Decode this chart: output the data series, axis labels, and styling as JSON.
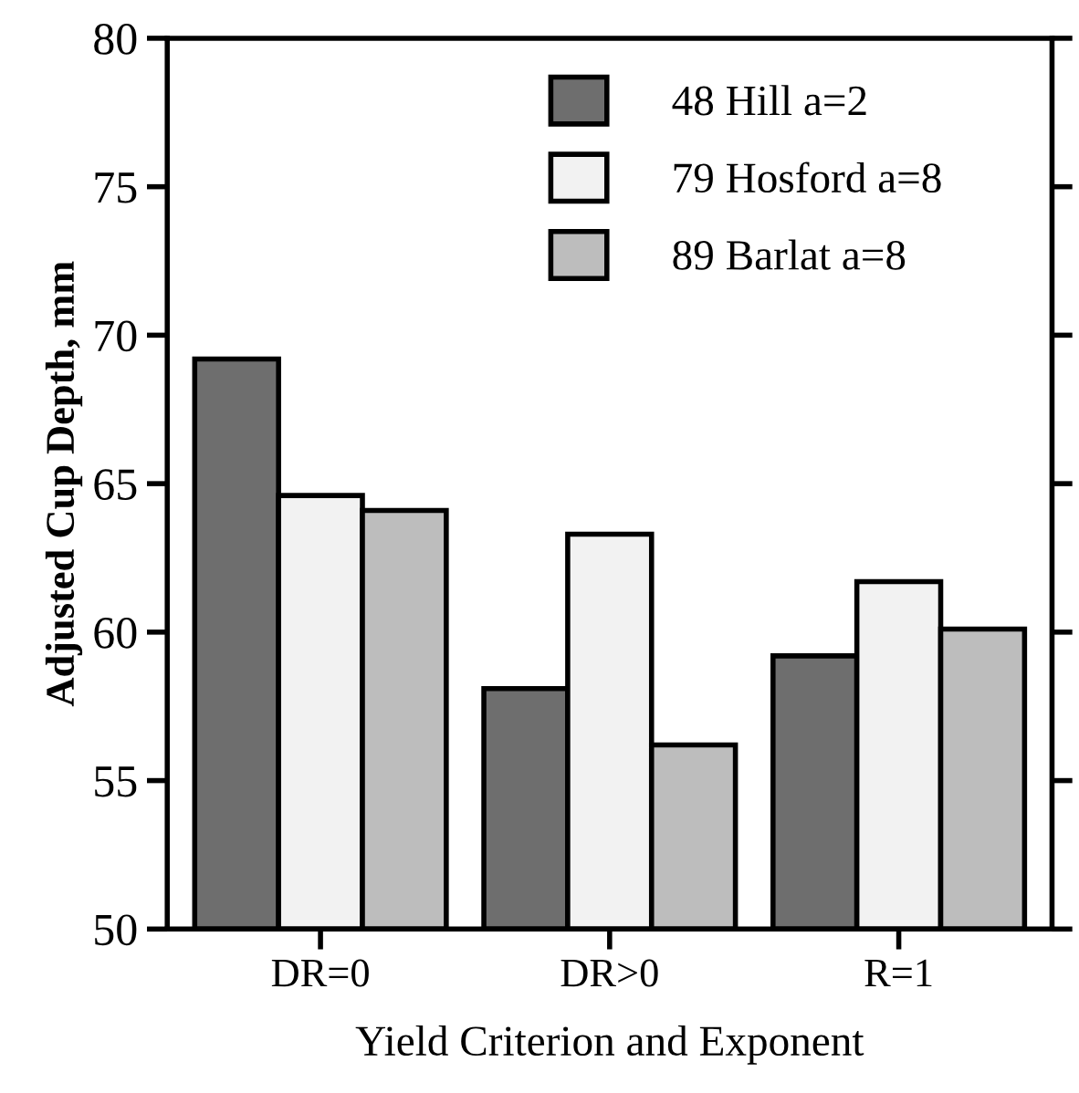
{
  "chart_data": {
    "type": "bar",
    "xlabel": "Yield Criterion and Exponent",
    "ylabel": "Adjusted Cup Depth, mm",
    "categories": [
      "DR=0",
      "DR>0",
      "R=1"
    ],
    "series": [
      {
        "name": "48 Hill a=2",
        "color": "#6e6e6e",
        "values": [
          69.2,
          58.1,
          59.2
        ]
      },
      {
        "name": "79 Hosford a=8",
        "color": "#f2f2f2",
        "values": [
          64.6,
          63.3,
          61.7
        ]
      },
      {
        "name": "89 Barlat a=8",
        "color": "#bdbdbd",
        "values": [
          64.1,
          56.2,
          60.1
        ]
      }
    ],
    "ylim": [
      50,
      80
    ],
    "yticks": [
      50,
      55,
      60,
      65,
      70,
      75,
      80
    ],
    "grid": false,
    "legend": "top right"
  }
}
